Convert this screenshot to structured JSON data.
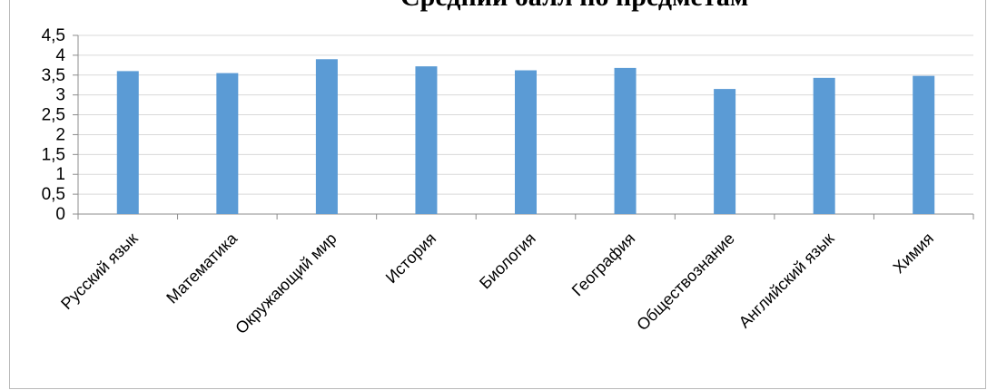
{
  "chart_data": {
    "type": "bar",
    "title": "Средний балл по предметам",
    "categories": [
      "Русский язык",
      "Математика",
      "Окружающий мир",
      "История",
      "Биология",
      "География",
      "Обществознание",
      "Английский язык",
      "Химия"
    ],
    "values": [
      3.6,
      3.55,
      3.9,
      3.72,
      3.62,
      3.68,
      3.15,
      3.43,
      3.48
    ],
    "ylim": [
      0,
      4.5
    ],
    "yticks": [
      "0",
      "0,5",
      "1",
      "1,5",
      "2",
      "2,5",
      "3",
      "3,5",
      "4",
      "4,5"
    ],
    "grid": true,
    "bar_color": "#5b9bd5",
    "grid_color": "#d9d9d9",
    "axis_color": "#8c8c8c"
  }
}
